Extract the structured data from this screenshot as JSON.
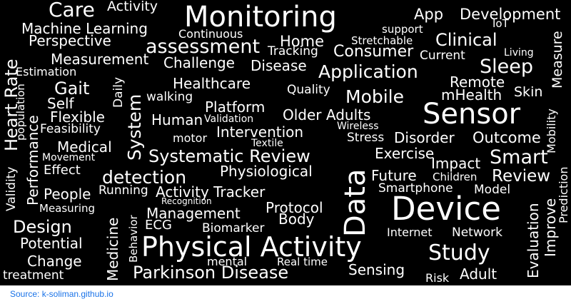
{
  "cloud": {
    "background": "#000000",
    "word_color": "#ffffff",
    "words": [
      "Monitoring",
      "Care",
      "Activity",
      "App",
      "Development",
      "Machine Learning",
      "Continuous",
      "support",
      "IoT",
      "Perspective",
      "assessment",
      "Home",
      "Stretchable",
      "Clinical",
      "Measure",
      "Heart Rate",
      "Measurement",
      "Tracking",
      "Consumer",
      "Current",
      "Living",
      "Estimation",
      "Challenge",
      "Disease",
      "Application",
      "Sleep",
      "Gait",
      "Healthcare",
      "Quality",
      "Remote",
      "Skin",
      "System",
      "Daily",
      "population",
      "walking",
      "Mobile",
      "mHealth",
      "Self",
      "Platform",
      "Sensor",
      "Flexible",
      "Human",
      "Validation",
      "Older Adults",
      "Mobility",
      "Feasibility",
      "Intervention",
      "Wireless",
      "Stress",
      "Disorder",
      "Outcome",
      "motor",
      "Textile",
      "Medical",
      "Systematic Review",
      "Exercise",
      "Smart",
      "Movement",
      "Validity",
      "Performance",
      "Impact",
      "Effect",
      "Physiological",
      "Data",
      "Future",
      "Children",
      "Review",
      "Prediction",
      "detection",
      "Running",
      "Smartphone",
      "Model",
      "People",
      "Activity Tracker",
      "Recognition",
      "Measuring",
      "Protocol",
      "Device",
      "Management",
      "Body",
      "Design",
      "Medicine",
      "Behavior",
      "ECG",
      "Biomarker",
      "Internet",
      "Network",
      "Evaluation",
      "Improve",
      "Potential",
      "Physical Activity",
      "Study",
      "Change",
      "mental",
      "Real time",
      "Sensing",
      "Parkinson Disease",
      "treatment",
      "Risk",
      "Adult"
    ]
  },
  "footer": {
    "source_label": "Source: k-soliman.github.io"
  }
}
